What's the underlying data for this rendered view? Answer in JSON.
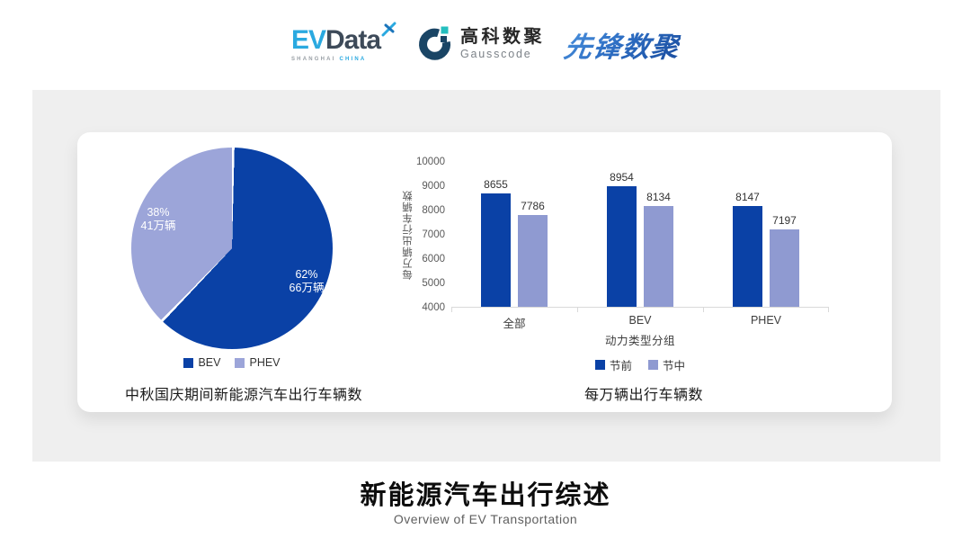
{
  "header": {
    "logos": [
      {
        "id": "evdata",
        "text_ev": "EV",
        "text_data": "Data",
        "sub_left": "SHANGHAI",
        "sub_right": "CHINA"
      },
      {
        "id": "gausscode",
        "cn": "高科数聚",
        "en": "Gausscode"
      },
      {
        "id": "xianfeng",
        "text": "先锋数聚"
      }
    ]
  },
  "colors": {
    "primary_dark_blue": "#0A41A6",
    "pie_light_blue": "#9CA5D9",
    "bar_light_blue": "#8F9AD1",
    "band_gray": "#EFEFEF",
    "card_white": "#FFFFFF"
  },
  "chart_data": [
    {
      "type": "pie",
      "title": "中秋国庆期间新能源汽车出行车辆数",
      "start_angle": "12 o'clock, clockwise",
      "slices": [
        {
          "label": "BEV",
          "percent": 62,
          "percent_label": "62%",
          "value_label": "66万辆",
          "color": "#0A41A6"
        },
        {
          "label": "PHEV",
          "percent": 38,
          "percent_label": "38%",
          "value_label": "41万辆",
          "color": "#9CA5D9"
        }
      ],
      "legend": [
        "BEV",
        "PHEV"
      ],
      "legend_position": "bottom"
    },
    {
      "type": "bar",
      "title": "每万辆出行车辆数",
      "categories": [
        "全部",
        "BEV",
        "PHEV"
      ],
      "series": [
        {
          "name": "节前",
          "color": "#0A41A6",
          "values": [
            8655,
            8954,
            8147
          ]
        },
        {
          "name": "节中",
          "color": "#8F9AD1",
          "values": [
            7786,
            8134,
            7197
          ]
        }
      ],
      "xlabel": "动力类型分组",
      "ylabel": "每万辆出行车辆数",
      "ylim": [
        4000,
        10000
      ],
      "yticks": [
        10000,
        9000,
        8000,
        7000,
        6000,
        5000,
        4000
      ],
      "grid": false,
      "legend_position": "bottom"
    }
  ],
  "footer": {
    "title": "新能源汽车出行综述",
    "subtitle": "Overview of EV Transportation"
  }
}
